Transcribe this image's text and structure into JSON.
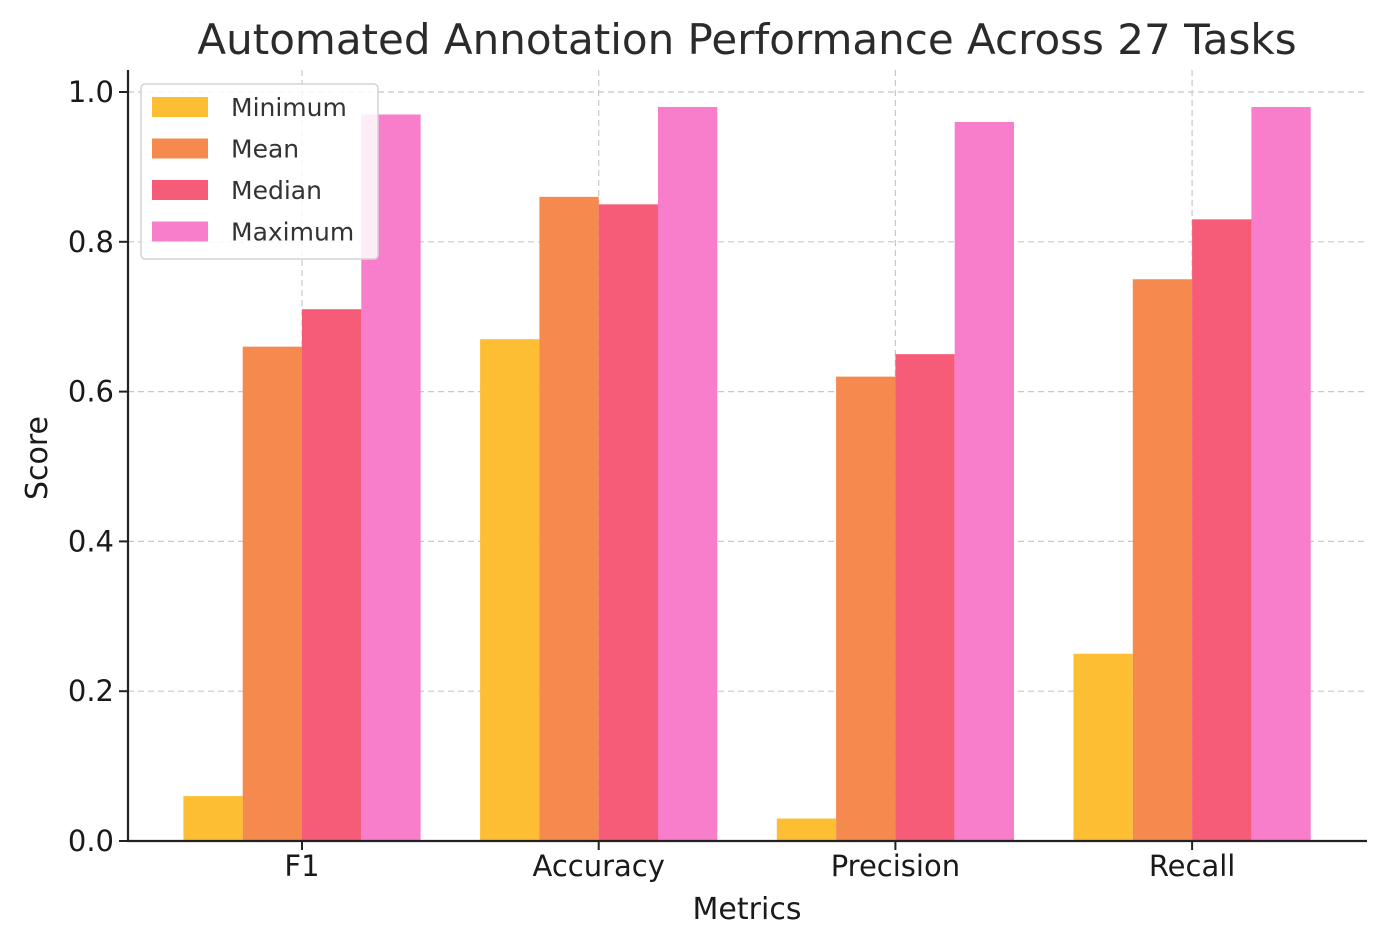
{
  "chart_data": {
    "type": "bar",
    "title": "Automated Annotation Performance Across 27 Tasks",
    "xlabel": "Metrics",
    "ylabel": "Score",
    "categories": [
      "F1",
      "Accuracy",
      "Precision",
      "Recall"
    ],
    "ylim": [
      0,
      1.03
    ],
    "yticks": [
      "0.0",
      "0.2",
      "0.4",
      "0.6",
      "0.8",
      "1.0"
    ],
    "grid": true,
    "legend_position": "top-left",
    "series": [
      {
        "name": "Minimum",
        "color": "#FDBE33",
        "values": [
          0.06,
          0.67,
          0.03,
          0.25
        ]
      },
      {
        "name": "Mean",
        "color": "#F6894E",
        "values": [
          0.66,
          0.86,
          0.62,
          0.75
        ]
      },
      {
        "name": "Median",
        "color": "#F65C78",
        "values": [
          0.71,
          0.85,
          0.65,
          0.83
        ]
      },
      {
        "name": "Maximum",
        "color": "#F87DCB",
        "values": [
          0.97,
          0.98,
          0.96,
          0.98
        ]
      }
    ]
  }
}
